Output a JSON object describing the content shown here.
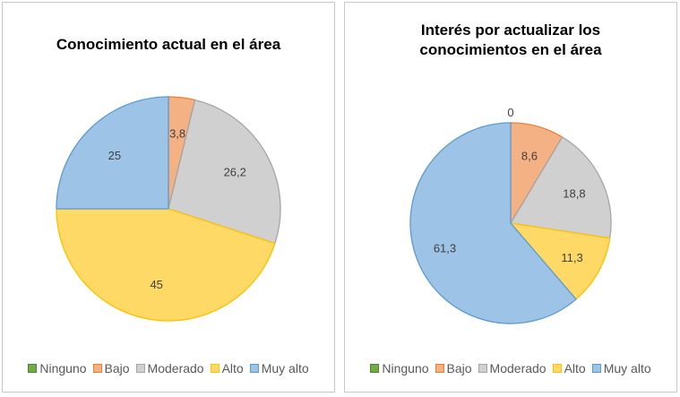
{
  "chart_data": [
    {
      "type": "pie",
      "title": "Conocimiento actual en el área",
      "categories": [
        "Ninguno",
        "Bajo",
        "Moderado",
        "Alto",
        "Muy alto"
      ],
      "values": [
        0,
        3.8,
        26.2,
        45,
        25
      ],
      "data_labels": [
        "",
        "3,8",
        "26,2",
        "45",
        "25"
      ],
      "legend_position": "bottom"
    },
    {
      "type": "pie",
      "title": "Interés por actualizar los conocimientos en el área",
      "categories": [
        "Ninguno",
        "Bajo",
        "Moderado",
        "Alto",
        "Muy alto"
      ],
      "values": [
        0,
        8.6,
        18.8,
        11.3,
        61.3
      ],
      "data_labels": [
        "0",
        "8,6",
        "18,8",
        "11,3",
        "61,3"
      ],
      "legend_position": "bottom"
    }
  ],
  "colors": {
    "Ninguno": "#70ad47",
    "Bajo": "#f4b183",
    "Moderado": "#d0d0d0",
    "Alto": "#ffd966",
    "Muy alto": "#9dc3e6"
  },
  "border_colors": {
    "Ninguno": "#548235",
    "Bajo": "#ed7d31",
    "Moderado": "#a5a5a5",
    "Alto": "#ffc000",
    "Muy alto": "#5b9bd5"
  }
}
